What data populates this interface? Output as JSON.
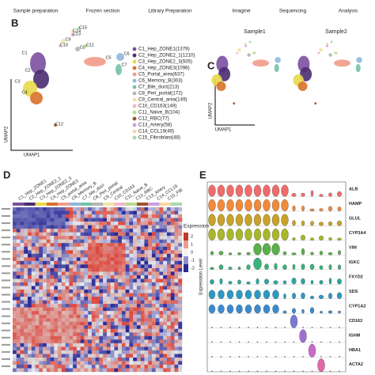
{
  "workflow": [
    "Sample preparation",
    "Frozen section",
    "Library Preparation",
    "Imagine",
    "Sequencing",
    "Analysis"
  ],
  "panels": {
    "b": "B",
    "c": "C",
    "d": "D",
    "e": "E"
  },
  "umap": {
    "x_label": "UMAP1",
    "y_label": "UMAP2"
  },
  "samples": [
    "Sample1",
    "Sample2"
  ],
  "clusters": [
    {
      "label": "C1",
      "legend": "C1_Hep_ZONE1(1379)",
      "color": "#7b4fa0"
    },
    {
      "label": "C2",
      "legend": "C2_Hep_ZONE2_1(1210)",
      "color": "#4a2c72"
    },
    {
      "label": "C3",
      "legend": "C3_Hep_ZONE2_3(935)",
      "color": "#e8d84a"
    },
    {
      "label": "C4",
      "legend": "C4_Hep_ZONE3(1098)",
      "color": "#d9712a"
    },
    {
      "label": "C5",
      "legend": "C5_Portal_area(637)",
      "color": "#f29b8a"
    },
    {
      "label": "C6",
      "legend": "C6_Memory_B(303)",
      "color": "#8fb8dc"
    },
    {
      "label": "C7",
      "legend": "C7_Bile_duct(213)",
      "color": "#74c2a6"
    },
    {
      "label": "C8",
      "legend": "C8_Peri_portal(172)",
      "color": "#b5b5b5"
    },
    {
      "label": "C9",
      "legend": "C9_Central_area(149)",
      "color": "#f2e4a0"
    },
    {
      "label": "C10",
      "legend": "C10_CD163(149)",
      "color": "#f4b6c8"
    },
    {
      "label": "C11",
      "legend": "C11_Naive_B(104)",
      "color": "#b7dd8c"
    },
    {
      "label": "C12",
      "legend": "C12_RBC(77)",
      "color": "#a0522d"
    },
    {
      "label": "C13",
      "legend": "C13_Artery(58)",
      "color": "#c9a0dc"
    },
    {
      "label": "C14",
      "legend": "C14_CCL19(49)",
      "color": "#fcd6a0"
    },
    {
      "label": "C15",
      "legend": "C15_Fibroblast(48)",
      "color": "#a8d9b0"
    }
  ],
  "heatmap": {
    "columns": [
      "C1_Hep_ZONE1",
      "C2_Hep_ZONE2_1",
      "C3_Hep_ZONE2_3",
      "C4_Hep_ZONE3",
      "C5_portal_area",
      "C6_Memory_B",
      "C7_bile_duct",
      "C8_Peri_portal",
      "C9_Central",
      "C10_CD163",
      "C11_Naive_B",
      "C12_RBC",
      "C13_Artery",
      "C14_CCL19",
      "C15_FIB"
    ],
    "legend_title": "Expression",
    "legend_ticks": [
      "2",
      "1",
      "0",
      "-1",
      "-2"
    ]
  },
  "violin": {
    "y_label": "Expression Level",
    "genes": [
      "ALB",
      "HAMP",
      "GLUL",
      "CYP3A4",
      "VIM",
      "IGKC",
      "FXYD2",
      "SDS",
      "CYP1A2",
      "CD163",
      "IGHM",
      "HBA1",
      "ACTA2"
    ]
  }
}
